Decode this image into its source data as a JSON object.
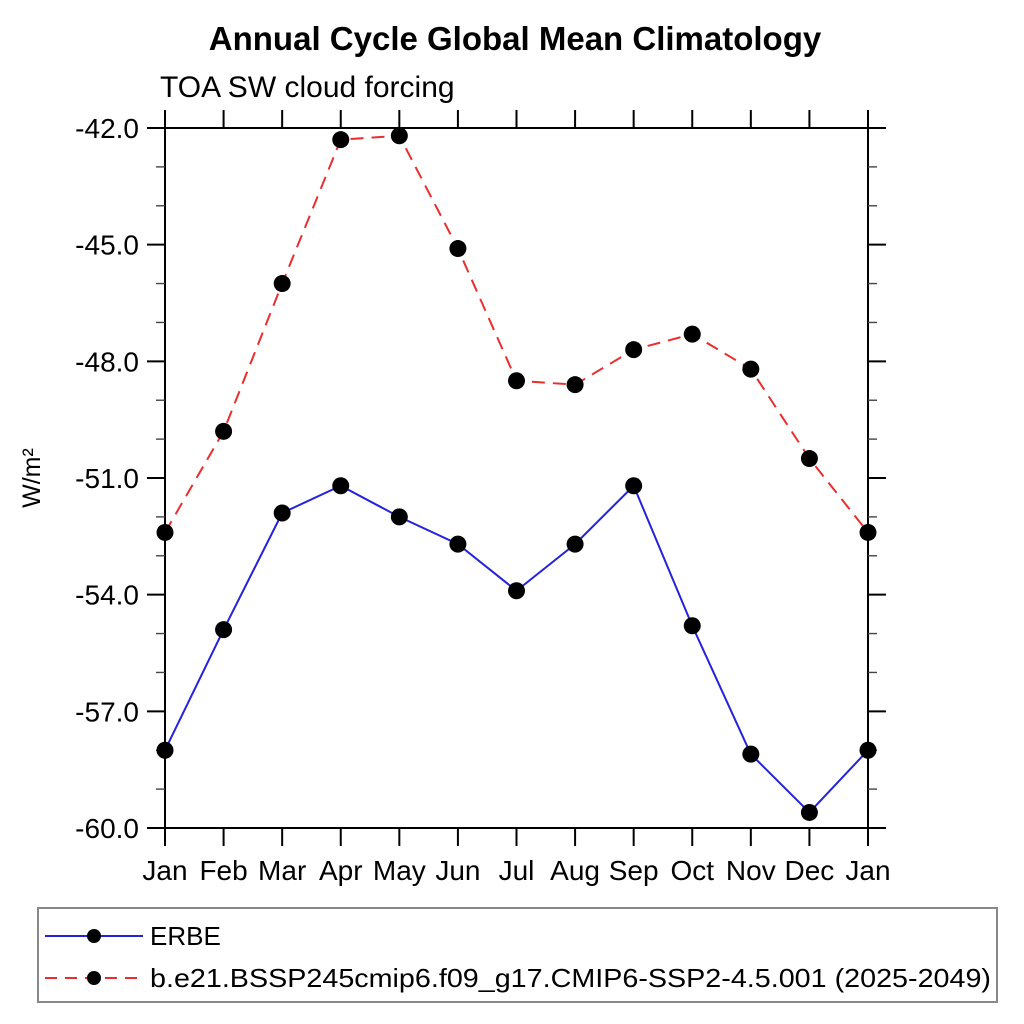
{
  "figure": {
    "title": "Annual Cycle Global Mean Climatology",
    "subtitle": "TOA SW cloud forcing",
    "ylabel": "W/m²"
  },
  "chart_data": {
    "type": "line",
    "title": "Annual Cycle Global Mean Climatology",
    "subtitle": "TOA SW cloud forcing",
    "xlabel": "",
    "ylabel": "W/m²",
    "categories": [
      "Jan",
      "Feb",
      "Mar",
      "Apr",
      "May",
      "Jun",
      "Jul",
      "Aug",
      "Sep",
      "Oct",
      "Nov",
      "Dec",
      "Jan"
    ],
    "ylim": [
      -60,
      -42
    ],
    "ytick_labels": [
      "-42.0",
      "-45.0",
      "-48.0",
      "-51.0",
      "-54.0",
      "-57.0",
      "-60.0"
    ],
    "ytick_major_step": 3,
    "ytick_minor_step": 1,
    "grid": false,
    "legend_position": "bottom",
    "series": [
      {
        "name": "ERBE",
        "color": "#2323dd",
        "line_style": "solid",
        "marker": "filled-circle",
        "marker_color": "#000000",
        "values": [
          -58.0,
          -54.9,
          -51.9,
          -51.2,
          -52.0,
          -52.7,
          -53.9,
          -52.7,
          -51.2,
          -54.8,
          -58.1,
          -59.6,
          -58.0
        ]
      },
      {
        "name": "b.e21.BSSP245cmip6.f09_g17.CMIP6-SSP2-4.5.001 (2025-2049)",
        "color": "#ea2d2d",
        "line_style": "dashed",
        "marker": "filled-circle",
        "marker_color": "#000000",
        "values": [
          -52.4,
          -49.8,
          -46.0,
          -42.3,
          -42.2,
          -45.1,
          -48.5,
          -48.6,
          -47.7,
          -47.3,
          -48.2,
          -50.5,
          -52.4
        ]
      }
    ]
  }
}
